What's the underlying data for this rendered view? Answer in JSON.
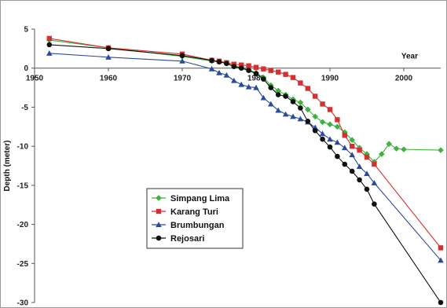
{
  "chart_data": {
    "type": "line",
    "xlabel": "Year",
    "ylabel": "Depth (meter)",
    "xlim": [
      1950,
      2005
    ],
    "ylim": [
      -30,
      5
    ],
    "x_ticks": [
      "1950",
      "1960",
      "1970",
      "1980",
      "1990",
      "2000"
    ],
    "y_ticks": [
      "5",
      "0",
      "-5",
      "-10",
      "-15",
      "-20",
      "-25",
      "-30"
    ],
    "grid": false,
    "legend_position": "left-bottom",
    "series": [
      {
        "name": "Simpang Lima",
        "color": "#3db33d",
        "marker": "diamond",
        "x": [
          1952,
          1960,
          1970,
          1974,
          1975,
          1976,
          1977,
          1978,
          1979,
          1980,
          1981,
          1982,
          1983,
          1984,
          1985,
          1986,
          1987,
          1988,
          1989,
          1990,
          1991,
          1992,
          1993,
          1994,
          1995,
          1996,
          1997,
          1998,
          1999,
          2000,
          2005
        ],
        "y": [
          3.6,
          2.6,
          1.5,
          0.9,
          0.8,
          0.6,
          0.3,
          0.1,
          -0.2,
          -0.6,
          -1.2,
          -2.2,
          -2.9,
          -3.4,
          -4.0,
          -4.4,
          -5.3,
          -6.2,
          -6.9,
          -7.2,
          -7.5,
          -8.2,
          -9.2,
          -10.2,
          -11.0,
          -12.0,
          -11.0,
          -9.7,
          -10.3,
          -10.4,
          -10.5
        ]
      },
      {
        "name": "Karang Turi",
        "color": "#d62f2f",
        "marker": "square",
        "x": [
          1952,
          1960,
          1970,
          1974,
          1975,
          1976,
          1977,
          1978,
          1979,
          1980,
          1981,
          1982,
          1983,
          1984,
          1985,
          1986,
          1987,
          1988,
          1989,
          1990,
          1991,
          1992,
          1993,
          1994,
          1995,
          1996,
          2005
        ],
        "y": [
          3.8,
          2.6,
          1.8,
          1.0,
          0.9,
          0.7,
          0.5,
          0.4,
          0.3,
          0.1,
          -0.1,
          -0.3,
          -0.5,
          -0.8,
          -1.2,
          -1.9,
          -2.6,
          -3.6,
          -4.6,
          -5.3,
          -6.6,
          -8.6,
          -10.0,
          -10.5,
          -11.4,
          -12.3,
          -23.0
        ]
      },
      {
        "name": "Brumbungan",
        "color": "#2b4a9c",
        "marker": "triangle",
        "x": [
          1952,
          1960,
          1970,
          1974,
          1975,
          1976,
          1977,
          1978,
          1979,
          1980,
          1981,
          1982,
          1983,
          1984,
          1985,
          1986,
          1987,
          1988,
          1989,
          1990,
          1991,
          1992,
          1993,
          1994,
          1995,
          1996,
          2005
        ],
        "y": [
          1.9,
          1.4,
          0.9,
          -0.1,
          -0.6,
          -0.9,
          -1.6,
          -2.1,
          -2.4,
          -2.5,
          -3.8,
          -4.6,
          -5.4,
          -5.9,
          -6.2,
          -6.5,
          -6.9,
          -7.6,
          -8.4,
          -9.1,
          -9.5,
          -10.2,
          -11.1,
          -12.6,
          -13.5,
          -14.7,
          -24.6
        ]
      },
      {
        "name": "Rejosari",
        "color": "#111111",
        "marker": "circle",
        "x": [
          1952,
          1960,
          1970,
          1974,
          1975,
          1976,
          1977,
          1978,
          1979,
          1980,
          1981,
          1982,
          1983,
          1984,
          1985,
          1986,
          1987,
          1988,
          1989,
          1990,
          1991,
          1992,
          1993,
          1994,
          1995,
          1996,
          2005
        ],
        "y": [
          3.0,
          2.5,
          1.6,
          1.0,
          0.8,
          0.6,
          0.2,
          0.0,
          -0.3,
          -0.7,
          -1.4,
          -2.5,
          -3.4,
          -3.6,
          -4.3,
          -5.1,
          -6.8,
          -8.0,
          -9.1,
          -10.1,
          -11.3,
          -12.3,
          -13.2,
          -14.3,
          -15.5,
          -17.4,
          -30.0
        ]
      }
    ]
  }
}
